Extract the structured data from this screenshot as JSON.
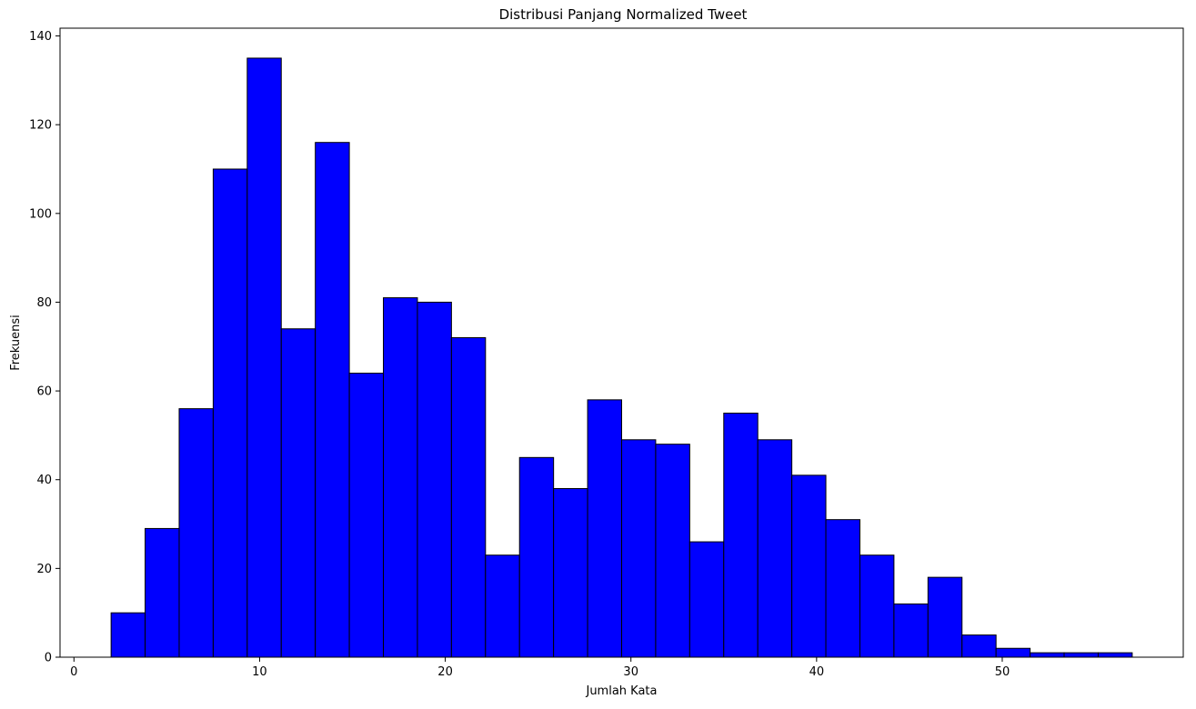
{
  "chart_data": {
    "type": "bar",
    "title": "Distribusi Panjang Normalized Tweet",
    "xlabel": "Jumlah Kata",
    "ylabel": "Frekuensi",
    "xlim": [
      -0.75,
      59.75
    ],
    "ylim": [
      0,
      141.75
    ],
    "xticks": [
      0,
      10,
      20,
      30,
      40,
      50
    ],
    "yticks": [
      0,
      20,
      40,
      60,
      80,
      100,
      120,
      140
    ],
    "grid": false,
    "legend": "none",
    "bin_width": 1.8333,
    "bin_edges": [
      2.0,
      3.8333,
      5.6667,
      7.5,
      9.3333,
      11.1667,
      13.0,
      14.8333,
      16.6667,
      18.5,
      20.3333,
      22.1667,
      24.0,
      25.8333,
      27.6667,
      29.5,
      31.3333,
      33.1667,
      35.0,
      36.8333,
      38.6667,
      40.5,
      42.3333,
      44.1667,
      46.0,
      47.8333,
      49.6667,
      51.5,
      53.3333,
      55.1667,
      57.0
    ],
    "values": [
      10,
      29,
      56,
      110,
      135,
      74,
      116,
      64,
      81,
      80,
      72,
      23,
      45,
      38,
      58,
      49,
      48,
      26,
      55,
      49,
      41,
      31,
      23,
      12,
      18,
      5,
      2,
      1,
      1,
      1
    ],
    "colors": {
      "bar_fill": "#0000ff",
      "bar_edge": "#000000",
      "axis": "#000000"
    }
  }
}
